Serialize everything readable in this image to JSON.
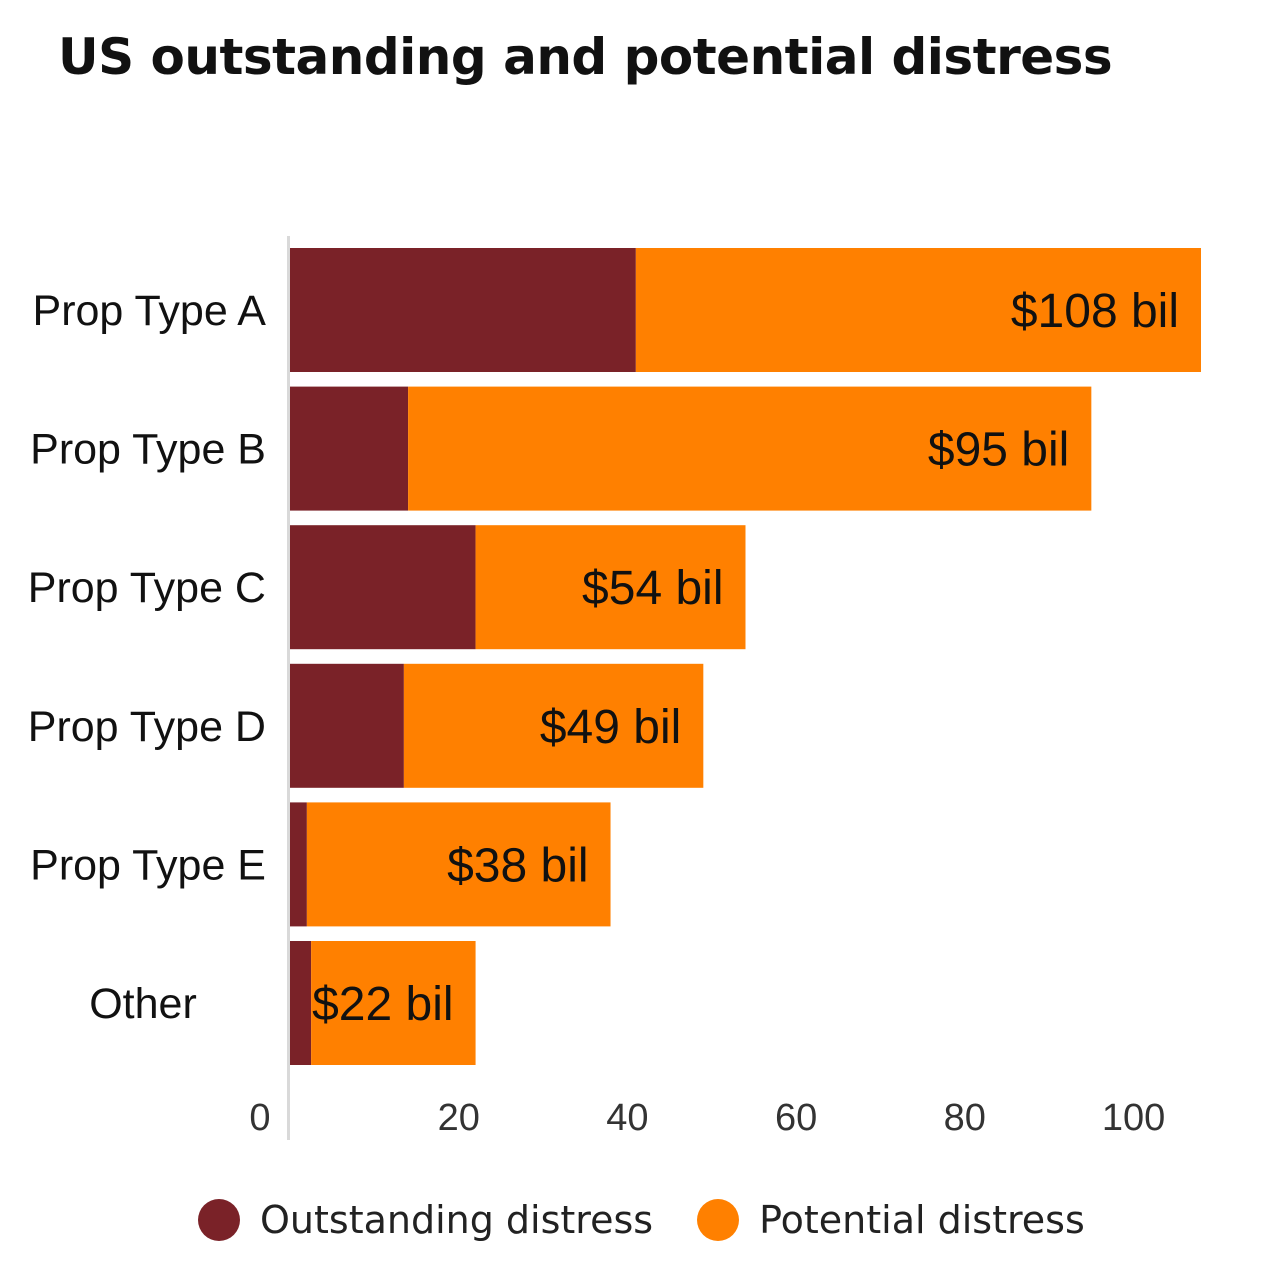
{
  "chart_data": {
    "type": "bar",
    "orientation": "horizontal",
    "stacked": true,
    "title": "US outstanding and potential distress",
    "xlabel": "",
    "ylabel": "",
    "xlim": [
      0,
      108
    ],
    "xticks": [
      "0",
      "20",
      "40",
      "60",
      "80",
      "100"
    ],
    "xtick_values": [
      0,
      20,
      40,
      60,
      80,
      100
    ],
    "categories": [
      "Prop Type A",
      "Prop Type B",
      "Prop Type C",
      "Prop Type D",
      "Prop Type E",
      "Other"
    ],
    "series": [
      {
        "name": "Outstanding distress",
        "color": "#7a2228",
        "values": [
          41,
          14,
          22,
          13.5,
          2,
          2.5
        ]
      },
      {
        "name": "Potential distress",
        "color": "#ff8000",
        "values": [
          67,
          81,
          32,
          35.5,
          36,
          19.5
        ]
      }
    ],
    "totals": [
      108,
      95,
      54,
      49,
      38,
      22
    ],
    "data_labels": [
      "$108 bil",
      "$95 bil",
      "$54 bil",
      "$49 bil",
      "$38 bil",
      "$22 bil"
    ],
    "legend": {
      "position": "bottom",
      "items": [
        "Outstanding distress",
        "Potential distress"
      ]
    },
    "grid": false
  }
}
